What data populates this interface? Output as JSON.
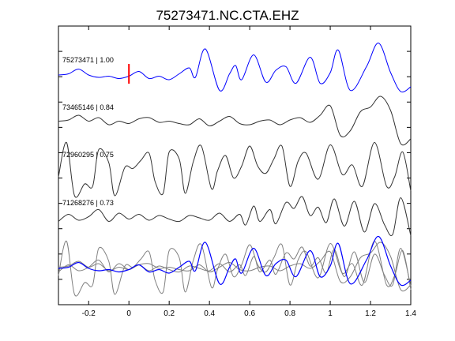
{
  "chart_data": {
    "type": "line",
    "title": "75273471.NC.CTA.EHZ",
    "xlabel": "",
    "ylabel": "",
    "xlim": [
      -0.35,
      1.4
    ],
    "x_ticks": [
      -0.2,
      0,
      0.2,
      0.4,
      0.6,
      0.8,
      1,
      1.2,
      1.4
    ],
    "x_tick_labels": [
      "-0.2",
      "0",
      "0.2",
      "0.4",
      "0.6",
      "0.8",
      "1",
      "1.2",
      "1.4"
    ],
    "y_tick_count": 10,
    "pick_marker_x": 0,
    "grid": false,
    "series": [
      {
        "name": "75273471 | 1.00",
        "color": "#0000ff",
        "trace_index": 0,
        "points": [
          [
            -0.35,
            0.0
          ],
          [
            -0.3,
            0.05
          ],
          [
            -0.25,
            0.25
          ],
          [
            -0.2,
            0.0
          ],
          [
            -0.15,
            -0.1
          ],
          [
            -0.1,
            -0.05
          ],
          [
            -0.05,
            -0.15
          ],
          [
            0.0,
            -0.05
          ],
          [
            0.05,
            0.15
          ],
          [
            0.1,
            -0.15
          ],
          [
            0.15,
            -0.05
          ],
          [
            0.2,
            -0.2
          ],
          [
            0.25,
            0.05
          ],
          [
            0.3,
            0.3
          ],
          [
            0.33,
            -0.1
          ],
          [
            0.38,
            1.1
          ],
          [
            0.45,
            -0.65
          ],
          [
            0.5,
            0.05
          ],
          [
            0.53,
            0.4
          ],
          [
            0.56,
            -0.2
          ],
          [
            0.62,
            0.85
          ],
          [
            0.68,
            -0.3
          ],
          [
            0.73,
            0.2
          ],
          [
            0.78,
            0.35
          ],
          [
            0.83,
            -0.35
          ],
          [
            0.9,
            0.75
          ],
          [
            0.95,
            -0.35
          ],
          [
            1.0,
            0.1
          ],
          [
            1.04,
            1.05
          ],
          [
            1.1,
            -0.65
          ],
          [
            1.18,
            0.35
          ],
          [
            1.24,
            1.35
          ],
          [
            1.3,
            0.1
          ],
          [
            1.35,
            -0.7
          ],
          [
            1.4,
            -0.5
          ]
        ]
      },
      {
        "name": "73465146 | 0.84",
        "color": "#333333",
        "trace_index": 1,
        "points": [
          [
            -0.35,
            0.05
          ],
          [
            -0.3,
            0.1
          ],
          [
            -0.25,
            0.3
          ],
          [
            -0.2,
            0.05
          ],
          [
            -0.15,
            0.2
          ],
          [
            -0.1,
            -0.1
          ],
          [
            -0.05,
            0.05
          ],
          [
            0.0,
            -0.05
          ],
          [
            0.05,
            0.15
          ],
          [
            0.1,
            0.2
          ],
          [
            0.15,
            0.0
          ],
          [
            0.2,
            0.05
          ],
          [
            0.25,
            -0.05
          ],
          [
            0.3,
            -0.1
          ],
          [
            0.35,
            0.15
          ],
          [
            0.4,
            -0.15
          ],
          [
            0.45,
            0.05
          ],
          [
            0.5,
            0.25
          ],
          [
            0.55,
            -0.05
          ],
          [
            0.6,
            -0.1
          ],
          [
            0.65,
            0.05
          ],
          [
            0.7,
            0.1
          ],
          [
            0.75,
            -0.1
          ],
          [
            0.8,
            0.1
          ],
          [
            0.85,
            0.2
          ],
          [
            0.9,
            0.0
          ],
          [
            0.95,
            0.3
          ],
          [
            1.0,
            0.7
          ],
          [
            1.05,
            -0.55
          ],
          [
            1.1,
            -0.35
          ],
          [
            1.15,
            0.45
          ],
          [
            1.2,
            0.65
          ],
          [
            1.25,
            1.1
          ],
          [
            1.3,
            0.5
          ],
          [
            1.35,
            -0.9
          ],
          [
            1.4,
            -0.7
          ]
        ]
      },
      {
        "name": "72960295 | 0.75",
        "color": "#333333",
        "trace_index": 2,
        "points": [
          [
            -0.35,
            -0.3
          ],
          [
            -0.31,
            1.15
          ],
          [
            -0.27,
            -1.1
          ],
          [
            -0.22,
            -0.6
          ],
          [
            -0.18,
            -0.7
          ],
          [
            -0.15,
            0.85
          ],
          [
            -0.1,
            0.3
          ],
          [
            -0.07,
            -1.1
          ],
          [
            -0.02,
            0.1
          ],
          [
            0.02,
            0.05
          ],
          [
            0.06,
            0.4
          ],
          [
            0.1,
            0.7
          ],
          [
            0.13,
            -0.5
          ],
          [
            0.17,
            -1.0
          ],
          [
            0.2,
            0.75
          ],
          [
            0.25,
            0.45
          ],
          [
            0.28,
            -1.0
          ],
          [
            0.32,
            0.35
          ],
          [
            0.36,
            1.0
          ],
          [
            0.41,
            -0.8
          ],
          [
            0.44,
            -0.05
          ],
          [
            0.48,
            0.6
          ],
          [
            0.52,
            -0.35
          ],
          [
            0.56,
            0.15
          ],
          [
            0.6,
            1.0
          ],
          [
            0.64,
            0.15
          ],
          [
            0.68,
            -0.15
          ],
          [
            0.72,
            0.45
          ],
          [
            0.76,
            1.0
          ],
          [
            0.8,
            -0.7
          ],
          [
            0.84,
            0.35
          ],
          [
            0.88,
            0.7
          ],
          [
            0.94,
            -0.4
          ],
          [
            1.0,
            1.05
          ],
          [
            1.06,
            -0.2
          ],
          [
            1.11,
            0.2
          ],
          [
            1.16,
            -0.7
          ],
          [
            1.22,
            1.15
          ],
          [
            1.28,
            -0.7
          ],
          [
            1.32,
            -0.3
          ],
          [
            1.36,
            0.75
          ],
          [
            1.4,
            -0.9
          ]
        ]
      },
      {
        "name": "71268276 | 0.73",
        "color": "#333333",
        "trace_index": 3,
        "points": [
          [
            -0.35,
            -0.15
          ],
          [
            -0.3,
            0.15
          ],
          [
            -0.25,
            -0.1
          ],
          [
            -0.2,
            0.05
          ],
          [
            -0.15,
            0.35
          ],
          [
            -0.1,
            -0.15
          ],
          [
            -0.05,
            0.2
          ],
          [
            0.0,
            -0.05
          ],
          [
            0.05,
            0.15
          ],
          [
            0.1,
            -0.1
          ],
          [
            0.15,
            0.1
          ],
          [
            0.2,
            -0.05
          ],
          [
            0.25,
            -0.15
          ],
          [
            0.3,
            0.1
          ],
          [
            0.35,
            0.0
          ],
          [
            0.4,
            -0.1
          ],
          [
            0.45,
            0.2
          ],
          [
            0.5,
            -0.15
          ],
          [
            0.55,
            0.15
          ],
          [
            0.58,
            -0.3
          ],
          [
            0.62,
            0.5
          ],
          [
            0.65,
            -0.15
          ],
          [
            0.7,
            0.35
          ],
          [
            0.73,
            -0.25
          ],
          [
            0.78,
            0.65
          ],
          [
            0.82,
            0.4
          ],
          [
            0.86,
            0.9
          ],
          [
            0.9,
            0.1
          ],
          [
            0.94,
            0.45
          ],
          [
            0.98,
            -0.2
          ],
          [
            1.02,
            0.8
          ],
          [
            1.07,
            -0.35
          ],
          [
            1.12,
            0.7
          ],
          [
            1.17,
            -0.6
          ],
          [
            1.22,
            0.6
          ],
          [
            1.27,
            -0.3
          ],
          [
            1.31,
            -0.7
          ],
          [
            1.35,
            0.85
          ],
          [
            1.4,
            -0.75
          ]
        ]
      }
    ]
  }
}
